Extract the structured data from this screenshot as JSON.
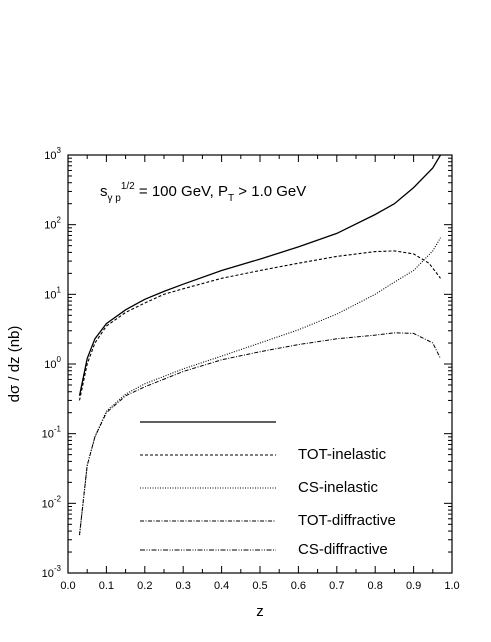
{
  "chart_data": {
    "type": "line",
    "title": "",
    "annotation": {
      "prefix": "s",
      "sub": "γ p",
      "sup": "1/2",
      "middle": " = 100 GeV, P",
      "sub2": "T",
      "suffix": " > 1.0 GeV"
    },
    "xlabel": "z",
    "ylabel": "dσ / dz (nb)",
    "xlim": [
      0.0,
      1.0
    ],
    "ylim": [
      0.001,
      1000
    ],
    "yscale": "log",
    "x_ticks": [
      "0.0",
      "0.1",
      "0.2",
      "0.3",
      "0.4",
      "0.5",
      "0.6",
      "0.7",
      "0.8",
      "0.9",
      "1.0"
    ],
    "y_tick_exponents": [
      "-3",
      "-2",
      "-1",
      "0",
      "1",
      "2",
      "3"
    ],
    "y_tick_base": "10",
    "grid": false,
    "legend_position": "bottom-center",
    "series": [
      {
        "name": "",
        "style": "solid",
        "x": [
          0.03,
          0.05,
          0.07,
          0.1,
          0.15,
          0.2,
          0.25,
          0.3,
          0.4,
          0.5,
          0.6,
          0.7,
          0.8,
          0.85,
          0.9,
          0.95,
          0.97
        ],
        "y": [
          0.35,
          1.2,
          2.3,
          3.8,
          6.0,
          8.5,
          11,
          14,
          22,
          32,
          48,
          75,
          140,
          200,
          340,
          650,
          1000
        ]
      },
      {
        "name": "TOT-inelastic",
        "style": "dashed",
        "x": [
          0.03,
          0.05,
          0.07,
          0.1,
          0.15,
          0.2,
          0.25,
          0.3,
          0.4,
          0.5,
          0.6,
          0.7,
          0.8,
          0.85,
          0.9,
          0.94,
          0.97
        ],
        "y": [
          0.3,
          1.0,
          2.0,
          3.5,
          5.5,
          7.5,
          10,
          12,
          17,
          22,
          28,
          35,
          41,
          42,
          38,
          28,
          17
        ]
      },
      {
        "name": "CS-inelastic",
        "style": "dotted",
        "x": [
          0.03,
          0.05,
          0.07,
          0.1,
          0.15,
          0.2,
          0.3,
          0.4,
          0.5,
          0.6,
          0.7,
          0.8,
          0.85,
          0.9,
          0.95,
          0.97
        ],
        "y": [
          0.0035,
          0.035,
          0.09,
          0.21,
          0.37,
          0.52,
          0.85,
          1.3,
          2.0,
          3.1,
          5.2,
          10,
          15,
          22,
          42,
          65
        ]
      },
      {
        "name": "TOT-diffractive",
        "style": "dashdot",
        "x": [
          0.03,
          0.05,
          0.07,
          0.1,
          0.15,
          0.2,
          0.3,
          0.4,
          0.5,
          0.6,
          0.7,
          0.8,
          0.85,
          0.9,
          0.95,
          0.97
        ],
        "y": [
          0.0035,
          0.035,
          0.09,
          0.2,
          0.35,
          0.47,
          0.78,
          1.15,
          1.5,
          1.9,
          2.3,
          2.6,
          2.8,
          2.75,
          2.0,
          1.2
        ]
      },
      {
        "name": "CS-diffractive",
        "style": "dashdotdot",
        "x": [],
        "y": []
      }
    ]
  }
}
